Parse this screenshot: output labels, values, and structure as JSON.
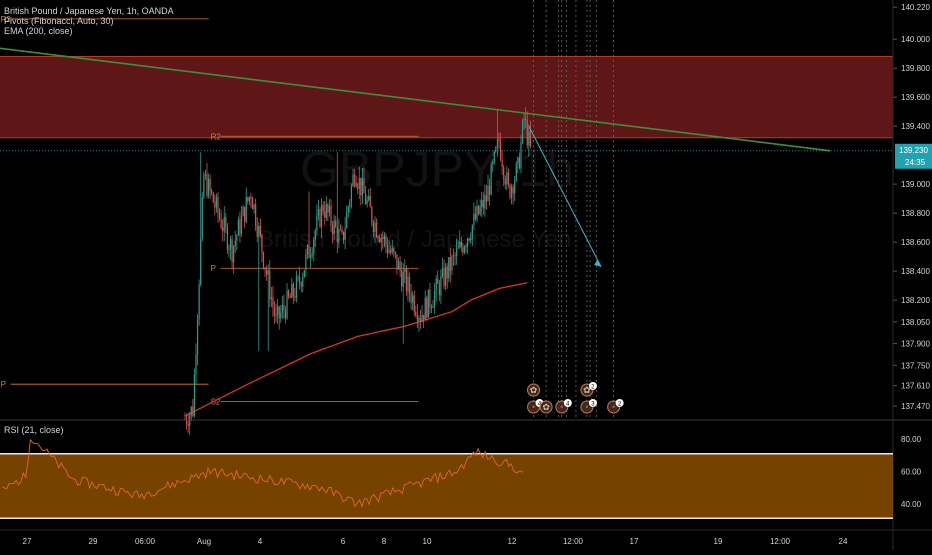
{
  "header": {
    "line1": "British Pound / Japanese Yen, 1h, OANDA",
    "line2": "Pivots (Fibonacci, Auto, 30)",
    "line3": "EMA (200, close)"
  },
  "watermark": {
    "symbol": "GBPJPY, 1h",
    "name": "British Pound / Japanese Yen"
  },
  "rsi_header": "RSI (21, close)",
  "price_badge": {
    "price": "139.230",
    "countdown": "24:35"
  },
  "colors": {
    "bull": "#2e9e8e",
    "bear": "#d9534f",
    "ema": "#d9342b",
    "resistance_zone": "#6e1a1a",
    "trendline": "#3f8f3a",
    "pivot": "#e07a2e",
    "rsi_band": "#8a4d00",
    "rsi_line": "#e06a1a",
    "projection": "#38b7c9"
  },
  "chart_data": [
    {
      "type": "candlestick",
      "title": "British Pound / Japanese Yen, 1h, OANDA",
      "price_axis_ticks": [
        "140.220",
        "140.000",
        "139.800",
        "139.600",
        "139.400",
        "139.230",
        "139.000",
        "138.800",
        "138.600",
        "138.400",
        "138.200",
        "138.050",
        "137.900",
        "137.750",
        "137.610",
        "137.470"
      ],
      "time_axis_ticks": [
        "27",
        "29",
        "06:00",
        "Aug",
        "4",
        "6",
        "8",
        "10",
        "12",
        "12:00",
        "17",
        "19",
        "12:00",
        "24"
      ],
      "ylim": [
        137.38,
        140.27
      ],
      "resistance_zone": [
        139.32,
        139.88
      ],
      "ema_200": [
        [
          0,
          137.4
        ],
        [
          40,
          137.62
        ],
        [
          80,
          137.83
        ],
        [
          110,
          137.95
        ],
        [
          140,
          138.02
        ],
        [
          170,
          138.12
        ],
        [
          182,
          138.2
        ],
        [
          200,
          138.28
        ],
        [
          218,
          138.32
        ]
      ],
      "trendline": {
        "from": [
          -180,
          140.02
        ],
        "to": [
          411,
          139.23
        ]
      },
      "pivots": [
        {
          "label": "R2",
          "level": 140.14,
          "x_start": -1,
          "x_end": 149
        },
        {
          "label": "P",
          "level": 137.62,
          "x_start": -1,
          "x_end": 149
        },
        {
          "label": "R2",
          "level": 139.33,
          "x_start": 149,
          "x_end": 299
        },
        {
          "label": "P",
          "level": 138.42,
          "x_start": 149,
          "x_end": 299
        },
        {
          "label": "S2",
          "level": 137.5,
          "x_start": 149,
          "x_end": 299
        }
      ],
      "projection": {
        "from": [
          219,
          139.4
        ],
        "to": [
          265,
          138.43
        ],
        "arrow": true
      },
      "segments": [
        {
          "from": 0,
          "to": 5,
          "start": 137.38,
          "end": 137.45
        },
        {
          "from": 5,
          "to": 12,
          "start": 137.45,
          "end": 139.05
        },
        {
          "from": 12,
          "to": 30,
          "start": 139.05,
          "end": 138.55
        },
        {
          "from": 30,
          "to": 42,
          "start": 138.55,
          "end": 138.95
        },
        {
          "from": 42,
          "to": 58,
          "start": 138.95,
          "end": 138.05
        },
        {
          "from": 58,
          "to": 72,
          "start": 138.05,
          "end": 138.3
        },
        {
          "from": 72,
          "to": 88,
          "start": 138.3,
          "end": 138.85
        },
        {
          "from": 88,
          "to": 100,
          "start": 138.85,
          "end": 138.6
        },
        {
          "from": 100,
          "to": 108,
          "start": 138.6,
          "end": 139.1
        },
        {
          "from": 108,
          "to": 120,
          "start": 139.1,
          "end": 138.75
        },
        {
          "from": 120,
          "to": 135,
          "start": 138.75,
          "end": 138.45
        },
        {
          "from": 135,
          "to": 150,
          "start": 138.45,
          "end": 138.1
        },
        {
          "from": 150,
          "to": 162,
          "start": 138.1,
          "end": 138.3
        },
        {
          "from": 162,
          "to": 175,
          "start": 138.3,
          "end": 138.55
        },
        {
          "from": 175,
          "to": 192,
          "start": 138.55,
          "end": 138.9
        },
        {
          "from": 192,
          "to": 200,
          "start": 138.9,
          "end": 139.3
        },
        {
          "from": 200,
          "to": 206,
          "start": 139.3,
          "end": 138.95
        },
        {
          "from": 206,
          "to": 212,
          "start": 138.95,
          "end": 139.1
        },
        {
          "from": 212,
          "to": 216,
          "start": 139.1,
          "end": 139.45
        },
        {
          "from": 216,
          "to": 220,
          "start": 139.45,
          "end": 139.23
        }
      ],
      "spikes": [
        {
          "i": 10,
          "high": 139.22
        },
        {
          "i": 26,
          "high": 138.8
        },
        {
          "i": 41,
          "high": 138.9
        },
        {
          "i": 47,
          "low": 137.85
        },
        {
          "i": 53,
          "low": 137.85
        },
        {
          "i": 79,
          "high": 138.95
        },
        {
          "i": 97,
          "high": 139.22
        },
        {
          "i": 139,
          "low": 137.9
        },
        {
          "i": 199,
          "high": 139.51
        },
        {
          "i": 217,
          "high": 139.53
        }
      ],
      "markers": [
        {
          "x": 222,
          "row": "upper",
          "glyph": "✿"
        },
        {
          "x": 222,
          "row": "lower",
          "glyph": "•",
          "badge": "4"
        },
        {
          "x": 230,
          "row": "lower",
          "glyph": "✿"
        },
        {
          "x": 240,
          "row": "lower",
          "glyph": "•",
          "badge": "4"
        },
        {
          "x": 256,
          "row": "upper",
          "glyph": "✿",
          "badge": "2"
        },
        {
          "x": 256,
          "row": "lower",
          "glyph": "•",
          "badge": "3"
        },
        {
          "x": 273,
          "row": "lower",
          "glyph": "•",
          "badge": "2"
        }
      ],
      "event_lines": [
        222,
        230,
        238,
        240,
        243,
        249,
        256,
        258,
        262,
        273
      ]
    },
    {
      "type": "line",
      "title": "RSI (21, close)",
      "y_ticks": [
        "80.00",
        "60.00",
        "40.00"
      ],
      "ylim": [
        25,
        90
      ],
      "band": [
        31,
        71
      ],
      "segments": [
        {
          "from": 0,
          "to": 10,
          "start": 48,
          "end": 57
        },
        {
          "from": 10,
          "to": 12,
          "start": 57,
          "end": 82
        },
        {
          "from": 12,
          "to": 30,
          "start": 82,
          "end": 55
        },
        {
          "from": 30,
          "to": 58,
          "start": 55,
          "end": 45
        },
        {
          "from": 58,
          "to": 88,
          "start": 45,
          "end": 60
        },
        {
          "from": 88,
          "to": 135,
          "start": 60,
          "end": 50
        },
        {
          "from": 135,
          "to": 150,
          "start": 50,
          "end": 40
        },
        {
          "from": 150,
          "to": 192,
          "start": 40,
          "end": 60
        },
        {
          "from": 192,
          "to": 200,
          "start": 60,
          "end": 72
        },
        {
          "from": 200,
          "to": 216,
          "start": 72,
          "end": 63
        },
        {
          "from": 216,
          "to": 220,
          "start": 63,
          "end": 57
        }
      ]
    }
  ]
}
